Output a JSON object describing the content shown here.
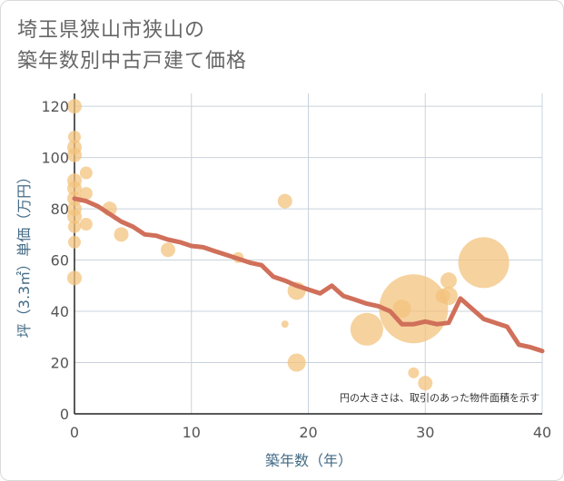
{
  "title_line1": "埼玉県狭山市狭山の",
  "title_line2": "築年数別中古戸建て価格",
  "note": "円の大きさは、取引のあった物件面積を示す",
  "colors": {
    "bubble": "#f3c37e",
    "line": "#d0705a",
    "grid": "#c9d3dc",
    "axis_label": "#446b86"
  },
  "chart_data": {
    "type": "scatter",
    "xlabel": "築年数（年）",
    "ylabel": "坪（3.3㎡）単価（万円）",
    "xlim": [
      0,
      40
    ],
    "ylim": [
      0,
      125
    ],
    "xticks": [
      0,
      10,
      20,
      30,
      40
    ],
    "yticks": [
      0,
      20,
      40,
      60,
      80,
      100,
      120
    ],
    "bubbles": [
      {
        "x": 0,
        "y": 120,
        "r": 8
      },
      {
        "x": 0,
        "y": 108,
        "r": 7
      },
      {
        "x": 0,
        "y": 104,
        "r": 8
      },
      {
        "x": 0,
        "y": 101,
        "r": 8
      },
      {
        "x": 0,
        "y": 91,
        "r": 8
      },
      {
        "x": 0,
        "y": 88,
        "r": 8
      },
      {
        "x": 0,
        "y": 84,
        "r": 8
      },
      {
        "x": 0,
        "y": 80,
        "r": 8
      },
      {
        "x": 0,
        "y": 77,
        "r": 8
      },
      {
        "x": 0,
        "y": 73,
        "r": 7
      },
      {
        "x": 0,
        "y": 67,
        "r": 7
      },
      {
        "x": 0,
        "y": 53,
        "r": 8
      },
      {
        "x": 1,
        "y": 94,
        "r": 7
      },
      {
        "x": 1,
        "y": 86,
        "r": 7
      },
      {
        "x": 1,
        "y": 74,
        "r": 7
      },
      {
        "x": 3,
        "y": 80,
        "r": 8
      },
      {
        "x": 4,
        "y": 70,
        "r": 8
      },
      {
        "x": 8,
        "y": 64,
        "r": 8
      },
      {
        "x": 14,
        "y": 61,
        "r": 6
      },
      {
        "x": 18,
        "y": 83,
        "r": 8
      },
      {
        "x": 18,
        "y": 35,
        "r": 4
      },
      {
        "x": 19,
        "y": 48,
        "r": 10
      },
      {
        "x": 19,
        "y": 20,
        "r": 10
      },
      {
        "x": 25,
        "y": 33,
        "r": 18
      },
      {
        "x": 28,
        "y": 41,
        "r": 10
      },
      {
        "x": 29,
        "y": 41,
        "r": 38
      },
      {
        "x": 29,
        "y": 16,
        "r": 6
      },
      {
        "x": 30,
        "y": 12,
        "r": 8
      },
      {
        "x": 31.5,
        "y": 46,
        "r": 8
      },
      {
        "x": 32,
        "y": 52,
        "r": 9
      },
      {
        "x": 32,
        "y": 46,
        "r": 10
      },
      {
        "x": 35,
        "y": 59,
        "r": 28
      }
    ],
    "trend": {
      "x": [
        0,
        1,
        2,
        3,
        4,
        5,
        6,
        7,
        8,
        9,
        10,
        11,
        12,
        13,
        14,
        15,
        16,
        17,
        18,
        19,
        20,
        21,
        22,
        23,
        24,
        25,
        26,
        27,
        28,
        29,
        30,
        31,
        32,
        33,
        34,
        35,
        36,
        37,
        38,
        39,
        40
      ],
      "y": [
        84,
        83,
        81,
        78,
        75,
        73,
        70,
        69.5,
        68,
        67,
        65.5,
        65,
        63.5,
        62,
        60.5,
        59,
        58,
        53.5,
        52,
        50,
        48.5,
        47,
        50,
        46,
        44.5,
        43,
        42,
        40,
        35,
        35,
        36,
        35,
        35.5,
        45,
        41,
        37,
        35.5,
        34,
        27,
        26,
        24.5
      ]
    }
  }
}
